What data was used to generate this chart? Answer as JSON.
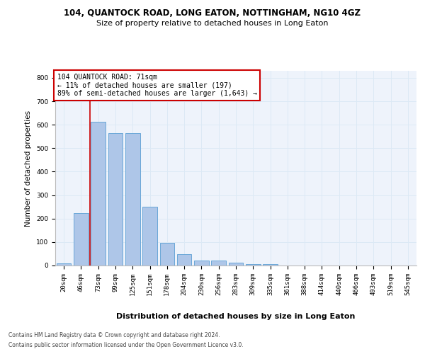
{
  "title1": "104, QUANTOCK ROAD, LONG EATON, NOTTINGHAM, NG10 4GZ",
  "title2": "Size of property relative to detached houses in Long Eaton",
  "xlabel": "Distribution of detached houses by size in Long Eaton",
  "ylabel": "Number of detached properties",
  "footnote1": "Contains HM Land Registry data © Crown copyright and database right 2024.",
  "footnote2": "Contains public sector information licensed under the Open Government Licence v3.0.",
  "bar_labels": [
    "20sqm",
    "46sqm",
    "73sqm",
    "99sqm",
    "125sqm",
    "151sqm",
    "178sqm",
    "204sqm",
    "230sqm",
    "256sqm",
    "283sqm",
    "309sqm",
    "335sqm",
    "361sqm",
    "388sqm",
    "414sqm",
    "440sqm",
    "466sqm",
    "493sqm",
    "519sqm",
    "545sqm"
  ],
  "bar_values": [
    10,
    224,
    614,
    564,
    564,
    251,
    97,
    49,
    22,
    22,
    13,
    5,
    5,
    0,
    0,
    0,
    0,
    0,
    0,
    0,
    0
  ],
  "bar_color": "#aec6e8",
  "bar_edgecolor": "#5a9fd4",
  "grid_color": "#dce9f5",
  "property_bar_index": 2,
  "property_line_color": "#cc0000",
  "annotation_line1": "104 QUANTOCK ROAD: 71sqm",
  "annotation_line2": "← 11% of detached houses are smaller (197)",
  "annotation_line3": "89% of semi-detached houses are larger (1,643) →",
  "annotation_box_edgecolor": "#cc0000",
  "ylim": [
    0,
    830
  ],
  "yticks": [
    0,
    100,
    200,
    300,
    400,
    500,
    600,
    700,
    800
  ],
  "axes_bg_color": "#eef3fb",
  "title1_fontsize": 8.5,
  "title2_fontsize": 8,
  "ylabel_fontsize": 7.5,
  "xlabel_fontsize": 8,
  "tick_fontsize": 6.5,
  "annot_fontsize": 7,
  "footnote_fontsize": 5.5
}
